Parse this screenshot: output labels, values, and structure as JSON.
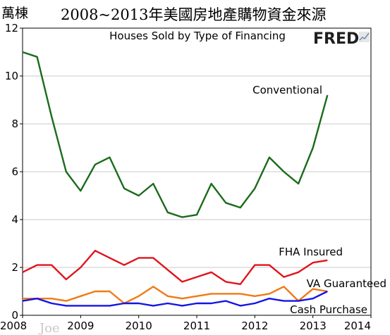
{
  "header": {
    "unit": "萬棟",
    "title": "2008~2013年美國房地產購物資金來源"
  },
  "brand": {
    "logo_text": "FRED",
    "watermark": "Joe"
  },
  "chart_data": {
    "type": "line",
    "subtitle": "Houses Sold by Type of Financing",
    "x": [
      2008.0,
      2008.25,
      2008.5,
      2008.75,
      2009.0,
      2009.25,
      2009.5,
      2009.75,
      2010.0,
      2010.25,
      2010.5,
      2010.75,
      2011.0,
      2011.25,
      2011.5,
      2011.75,
      2012.0,
      2012.25,
      2012.5,
      2012.75,
      2013.0,
      2013.25
    ],
    "xlim": [
      2008,
      2014
    ],
    "ylim": [
      0,
      12
    ],
    "xticks": [
      "2008",
      "2009",
      "2010",
      "2011",
      "2012",
      "2013",
      "2014"
    ],
    "yticks": [
      "0",
      "2",
      "4",
      "6",
      "8",
      "10",
      "12"
    ],
    "grid": true,
    "series": [
      {
        "name": "Conventional",
        "color": "#1a6b1a",
        "values": [
          11.0,
          10.8,
          8.3,
          6.0,
          5.2,
          6.3,
          6.6,
          5.3,
          5.0,
          5.5,
          4.3,
          4.1,
          4.2,
          5.5,
          4.7,
          4.5,
          5.3,
          6.6,
          6.0,
          5.5,
          7.0,
          9.2
        ]
      },
      {
        "name": "FHA Insured",
        "color": "#e0141e",
        "values": [
          1.8,
          2.1,
          2.1,
          1.5,
          2.0,
          2.7,
          2.4,
          2.1,
          2.4,
          2.4,
          1.9,
          1.4,
          1.6,
          1.8,
          1.4,
          1.3,
          2.1,
          2.1,
          1.6,
          1.8,
          2.2,
          2.3
        ]
      },
      {
        "name": "VA Guaranteed",
        "color": "#f07a14",
        "values": [
          0.7,
          0.7,
          0.7,
          0.6,
          0.8,
          1.0,
          1.0,
          0.5,
          0.8,
          1.2,
          0.8,
          0.7,
          0.8,
          0.9,
          0.9,
          0.9,
          0.8,
          0.9,
          1.2,
          0.6,
          1.1,
          1.0
        ]
      },
      {
        "name": "Cash Purchase",
        "color": "#1414e6",
        "values": [
          0.6,
          0.7,
          0.5,
          0.4,
          0.4,
          0.4,
          0.4,
          0.5,
          0.5,
          0.4,
          0.5,
          0.4,
          0.5,
          0.5,
          0.6,
          0.4,
          0.5,
          0.7,
          0.6,
          0.6,
          0.7,
          1.0
        ]
      }
    ]
  }
}
